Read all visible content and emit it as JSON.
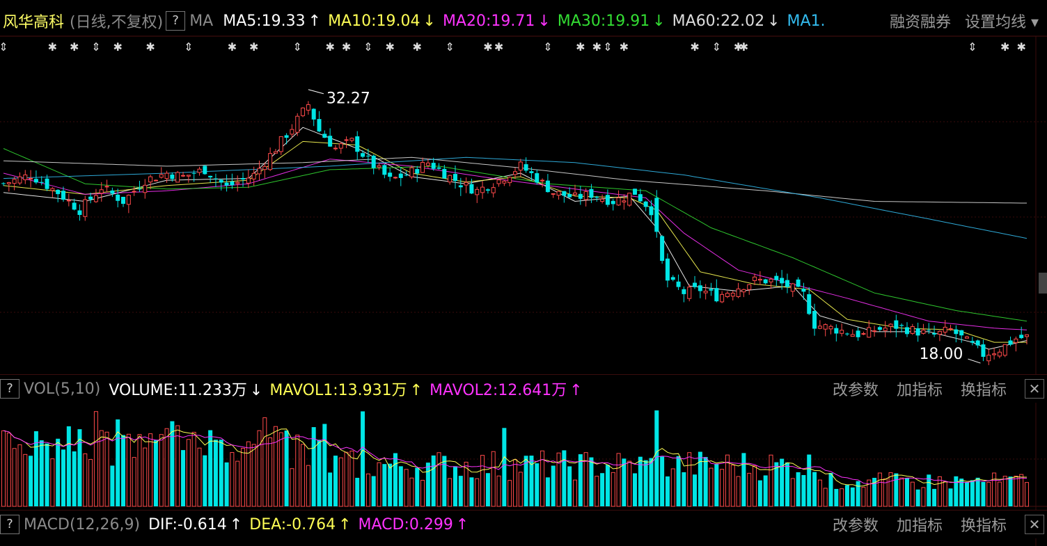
{
  "header": {
    "stock_name": "风华高科",
    "period": "(日线,不复权)",
    "help": "?",
    "ma_label": "MA",
    "indicators": [
      {
        "text": "MA5:19.33",
        "arrow": "↑",
        "color": "#ffffff"
      },
      {
        "text": "MA10:19.04",
        "arrow": "↓",
        "color": "#ffff55"
      },
      {
        "text": "MA20:19.71",
        "arrow": "↓",
        "color": "#ff33ff"
      },
      {
        "text": "MA30:19.91",
        "arrow": "↓",
        "color": "#33dd33"
      },
      {
        "text": "MA60:22.02",
        "arrow": "↓",
        "color": "#dddddd"
      },
      {
        "text": "MA1.",
        "arrow": "",
        "color": "#33bbee"
      }
    ],
    "margin_trading": "融资融券",
    "set_ma": "设置均线 ▾"
  },
  "vol_panel": {
    "help": "?",
    "name": "VOL(5,10)",
    "values": [
      {
        "text": "VOLUME:11.233万",
        "arrow": "↓",
        "color": "#ffffff"
      },
      {
        "text": "MAVOL1:13.931万",
        "arrow": "↑",
        "color": "#ffff55"
      },
      {
        "text": "MAVOL2:12.641万",
        "arrow": "↑",
        "color": "#ff33ff"
      }
    ],
    "change_params": "改参数",
    "add_indicator": "加指标",
    "switch_indicator": "换指标",
    "close": "✕"
  },
  "macd_panel": {
    "help": "?",
    "name": "MACD(12,26,9)",
    "values": [
      {
        "text": "DIF:-0.614",
        "arrow": "↑",
        "color": "#ffffff"
      },
      {
        "text": "DEA:-0.764",
        "arrow": "↑",
        "color": "#ffff55"
      },
      {
        "text": "MACD:0.299",
        "arrow": "↑",
        "color": "#ff33ff"
      }
    ],
    "change_params": "改参数",
    "add_indicator": "加指标",
    "switch_indicator": "换指标",
    "close": "✕"
  },
  "chart_data": {
    "type": "candlestick",
    "price_range": [
      16.7,
      33.8
    ],
    "high_label": "32.27",
    "low_label": "18.00",
    "colors": {
      "up": "#ff4a4a",
      "down": "#00e5e5",
      "ma5": "#ffffff",
      "ma10": "#ffff55",
      "ma20": "#ff33ff",
      "ma30": "#33dd33",
      "ma60": "#dddddd",
      "ma120": "#33bbee"
    },
    "anchors": [
      [
        0,
        27.0
      ],
      [
        5,
        27.5
      ],
      [
        10,
        26.5
      ],
      [
        14,
        25.5
      ],
      [
        18,
        26.8
      ],
      [
        22,
        26.0
      ],
      [
        26,
        27.2
      ],
      [
        30,
        27.6
      ],
      [
        33,
        27.4
      ],
      [
        37,
        27.8
      ],
      [
        41,
        26.8
      ],
      [
        46,
        27.5
      ],
      [
        50,
        29.0
      ],
      [
        53,
        30.2
      ],
      [
        56,
        31.5
      ],
      [
        58,
        30.0
      ],
      [
        61,
        29.0
      ],
      [
        64,
        29.4
      ],
      [
        67,
        28.3
      ],
      [
        71,
        27.2
      ],
      [
        74,
        27.5
      ],
      [
        78,
        28.2
      ],
      [
        81,
        27.6
      ],
      [
        84,
        27.0
      ],
      [
        87,
        26.6
      ],
      [
        91,
        27.2
      ],
      [
        95,
        28.0
      ],
      [
        98,
        27.3
      ],
      [
        101,
        26.5
      ],
      [
        105,
        26.2
      ],
      [
        108,
        26.4
      ],
      [
        112,
        26.0
      ],
      [
        116,
        26.5
      ],
      [
        119,
        25.5
      ],
      [
        121,
        22.5
      ],
      [
        122,
        21.5
      ],
      [
        125,
        20.8
      ],
      [
        128,
        21.0
      ],
      [
        131,
        20.6
      ],
      [
        134,
        21.0
      ],
      [
        138,
        21.5
      ],
      [
        141,
        21.5
      ],
      [
        144,
        21.2
      ],
      [
        147,
        20.7
      ],
      [
        149,
        19.0
      ],
      [
        152,
        18.8
      ],
      [
        156,
        18.5
      ],
      [
        158,
        18.4
      ],
      [
        160,
        18.7
      ],
      [
        164,
        18.9
      ],
      [
        168,
        18.6
      ],
      [
        171,
        18.4
      ],
      [
        174,
        18.7
      ],
      [
        178,
        17.8
      ],
      [
        180,
        17.3
      ],
      [
        183,
        17.6
      ],
      [
        186,
        18.2
      ],
      [
        188,
        18.3
      ]
    ],
    "ma_anchors": {
      "ma5": [
        [
          0,
          26.5
        ],
        [
          15,
          26.0
        ],
        [
          30,
          27.2
        ],
        [
          45,
          27.3
        ],
        [
          55,
          30.2
        ],
        [
          65,
          29.0
        ],
        [
          75,
          27.4
        ],
        [
          85,
          27.0
        ],
        [
          95,
          27.6
        ],
        [
          105,
          26.0
        ],
        [
          115,
          26.3
        ],
        [
          120,
          24.5
        ],
        [
          126,
          21.2
        ],
        [
          135,
          20.9
        ],
        [
          145,
          21.2
        ],
        [
          150,
          19.5
        ],
        [
          160,
          18.6
        ],
        [
          170,
          18.6
        ],
        [
          178,
          18.0
        ],
        [
          181,
          17.6
        ],
        [
          188,
          18.1
        ]
      ],
      "ma10": [
        [
          0,
          26.9
        ],
        [
          15,
          26.4
        ],
        [
          30,
          26.9
        ],
        [
          45,
          27.2
        ],
        [
          55,
          29.4
        ],
        [
          65,
          29.2
        ],
        [
          75,
          27.6
        ],
        [
          85,
          27.1
        ],
        [
          95,
          27.4
        ],
        [
          105,
          26.3
        ],
        [
          115,
          26.2
        ],
        [
          120,
          25.5
        ],
        [
          128,
          22.0
        ],
        [
          138,
          21.3
        ],
        [
          148,
          21.0
        ],
        [
          155,
          19.3
        ],
        [
          165,
          18.8
        ],
        [
          175,
          18.7
        ],
        [
          182,
          18.0
        ],
        [
          188,
          18.0
        ]
      ],
      "ma20": [
        [
          0,
          27.6
        ],
        [
          15,
          26.4
        ],
        [
          30,
          26.6
        ],
        [
          45,
          27.0
        ],
        [
          60,
          28.4
        ],
        [
          75,
          28.0
        ],
        [
          90,
          27.3
        ],
        [
          105,
          26.7
        ],
        [
          118,
          26.2
        ],
        [
          125,
          24.2
        ],
        [
          135,
          22.1
        ],
        [
          145,
          21.3
        ],
        [
          155,
          20.5
        ],
        [
          170,
          19.2
        ],
        [
          182,
          18.8
        ],
        [
          188,
          18.7
        ]
      ],
      "ma30": [
        [
          0,
          29.0
        ],
        [
          15,
          27.0
        ],
        [
          30,
          26.7
        ],
        [
          45,
          26.8
        ],
        [
          60,
          27.8
        ],
        [
          80,
          28.0
        ],
        [
          100,
          27.0
        ],
        [
          118,
          26.6
        ],
        [
          130,
          24.5
        ],
        [
          145,
          22.8
        ],
        [
          160,
          20.8
        ],
        [
          175,
          19.8
        ],
        [
          188,
          19.2
        ]
      ],
      "ma60": [
        [
          0,
          28.3
        ],
        [
          30,
          28.0
        ],
        [
          55,
          28.2
        ],
        [
          75,
          28.5
        ],
        [
          95,
          27.9
        ],
        [
          115,
          27.2
        ],
        [
          140,
          26.6
        ],
        [
          160,
          26.0
        ],
        [
          188,
          25.9
        ]
      ],
      "ma120": [
        [
          0,
          27.3
        ],
        [
          30,
          27.6
        ],
        [
          60,
          28.0
        ],
        [
          85,
          28.5
        ],
        [
          105,
          28.2
        ],
        [
          125,
          27.5
        ],
        [
          150,
          26.2
        ],
        [
          170,
          25.0
        ],
        [
          188,
          23.9
        ]
      ]
    },
    "volume_max": 100
  }
}
